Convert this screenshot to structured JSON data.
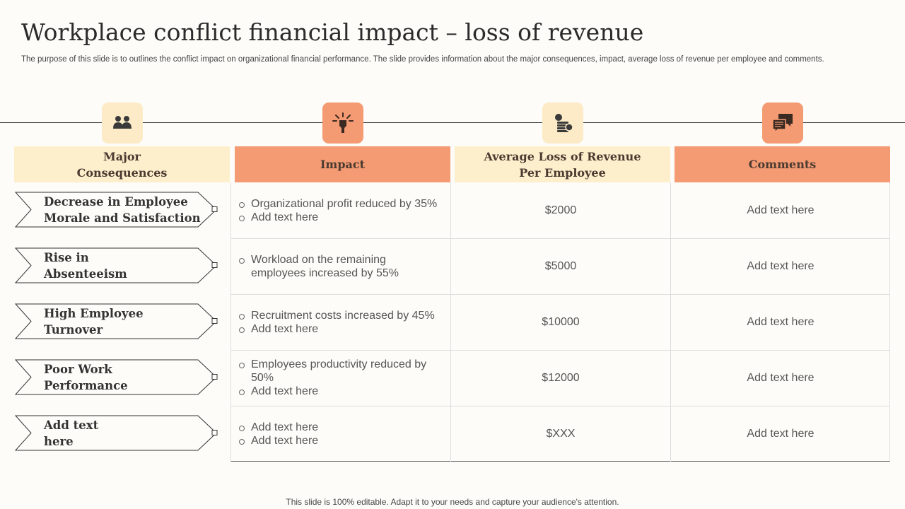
{
  "title": "Workplace conflict financial impact – loss of revenue",
  "subtitle": "The purpose of this slide is to outlines the conflict impact on organizational financial performance. The slide provides information about the major consequences, impact, average loss of revenue per employee and comments.",
  "icons": [
    "people-icon",
    "impact-icon",
    "revenue-loss-icon",
    "comments-icon"
  ],
  "colors": {
    "light_header": "#fdefcc",
    "dark_header": "#f49b73",
    "light_icon_bg": "#fcebc6"
  },
  "headers": {
    "consequences": "Major Consequences",
    "impact": "Impact",
    "avg_loss": "Average Loss of Revenue Per Employee",
    "comments": "Comments"
  },
  "rows": [
    {
      "consequence": "Decrease in Employee Morale and Satisfaction",
      "impact": [
        "Organizational profit reduced by 35%",
        "Add text here"
      ],
      "loss": "$2000",
      "comment": "Add text here"
    },
    {
      "consequence": "Rise in Absenteeism",
      "impact": [
        "Workload on the remaining employees increased by 55%"
      ],
      "loss": "$5000",
      "comment": "Add text here"
    },
    {
      "consequence": "High Employee Turnover",
      "impact": [
        "Recruitment costs increased by 45%",
        "Add text here"
      ],
      "loss": "$10000",
      "comment": "Add text here"
    },
    {
      "consequence": "Poor Work Performance",
      "impact": [
        "Employees productivity reduced by 50%",
        "Add text here"
      ],
      "loss": "$12000",
      "comment": "Add text here"
    },
    {
      "consequence": "Add text here",
      "impact": [
        "Add text here",
        "Add text here"
      ],
      "loss": "$XXX",
      "comment": "Add text here"
    }
  ],
  "footer": "This slide is 100% editable. Adapt it to your needs and capture your audience's attention."
}
